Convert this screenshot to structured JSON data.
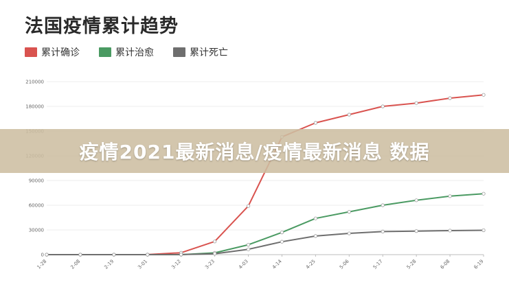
{
  "chart_data": {
    "type": "line",
    "title": "法国疫情累计趋势",
    "x": [
      "1-28",
      "2-08",
      "2-19",
      "3-01",
      "3-12",
      "3-23",
      "4-03",
      "4-14",
      "4-25",
      "5-06",
      "5-17",
      "5-28",
      "6-08",
      "6-19"
    ],
    "y_ticks": [
      "0",
      "30000",
      "60000",
      "90000",
      "120000",
      "150000",
      "180000",
      "210000"
    ],
    "ylim": [
      0,
      210000
    ],
    "grid": true,
    "legend_position": "top-left",
    "series": [
      {
        "name": "累计确诊",
        "color": "#d9534f",
        "values": [
          0,
          0,
          12,
          100,
          2300,
          16000,
          59000,
          143000,
          160000,
          170000,
          180000,
          184000,
          190000,
          194000
        ]
      },
      {
        "name": "累计治愈",
        "color": "#4a9a62",
        "values": [
          0,
          0,
          0,
          10,
          15,
          2200,
          12000,
          27000,
          44000,
          52000,
          60000,
          66000,
          71000,
          74000
        ]
      },
      {
        "name": "累计死亡",
        "color": "#6e6e6e",
        "values": [
          0,
          0,
          0,
          2,
          60,
          1100,
          6500,
          15700,
          22600,
          25800,
          28000,
          28600,
          29200,
          29600
        ]
      }
    ]
  },
  "banner": {
    "text": "疫情2021最新消息/疫情最新消息 数据"
  }
}
